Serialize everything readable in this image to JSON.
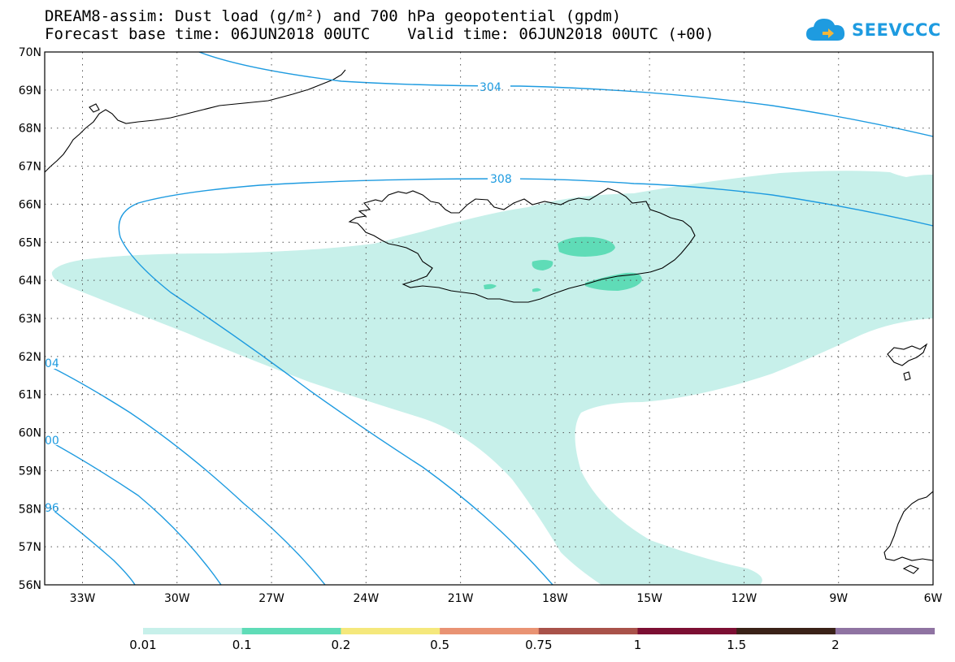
{
  "header": {
    "title_line1": "DREAM8-assim: Dust load (g/m²) and 700 hPa geopotential (gpdm)",
    "title_line2": "Forecast base time: 06JUN2018 00UTC    Valid time: 06JUN2018 00UTC (+00)",
    "logo_text": "SEEVCCC",
    "logo_icon": "cloud-icon"
  },
  "map": {
    "region": "North Atlantic / Iceland",
    "lat_labels": [
      "70N",
      "69N",
      "68N",
      "67N",
      "66N",
      "65N",
      "64N",
      "63N",
      "62N",
      "61N",
      "60N",
      "59N",
      "58N",
      "57N",
      "56N"
    ],
    "lon_labels": [
      "33W",
      "30W",
      "27W",
      "24W",
      "21W",
      "18W",
      "15W",
      "12W",
      "9W",
      "6W"
    ],
    "grid": true,
    "contour_labels": [
      "304",
      "308",
      "04",
      "00",
      "96"
    ],
    "contour_color": "#1e9be0"
  },
  "colorbar": {
    "labels": [
      "0.01",
      "0.1",
      "0.2",
      "0.5",
      "0.75",
      "1",
      "1.5",
      "2"
    ],
    "colors": [
      "#c7f0ea",
      "#5fdcb7",
      "#f5e87c",
      "#e99373",
      "#a9524a",
      "#7c0f33",
      "#3a2218",
      "#8f73a2"
    ]
  }
}
